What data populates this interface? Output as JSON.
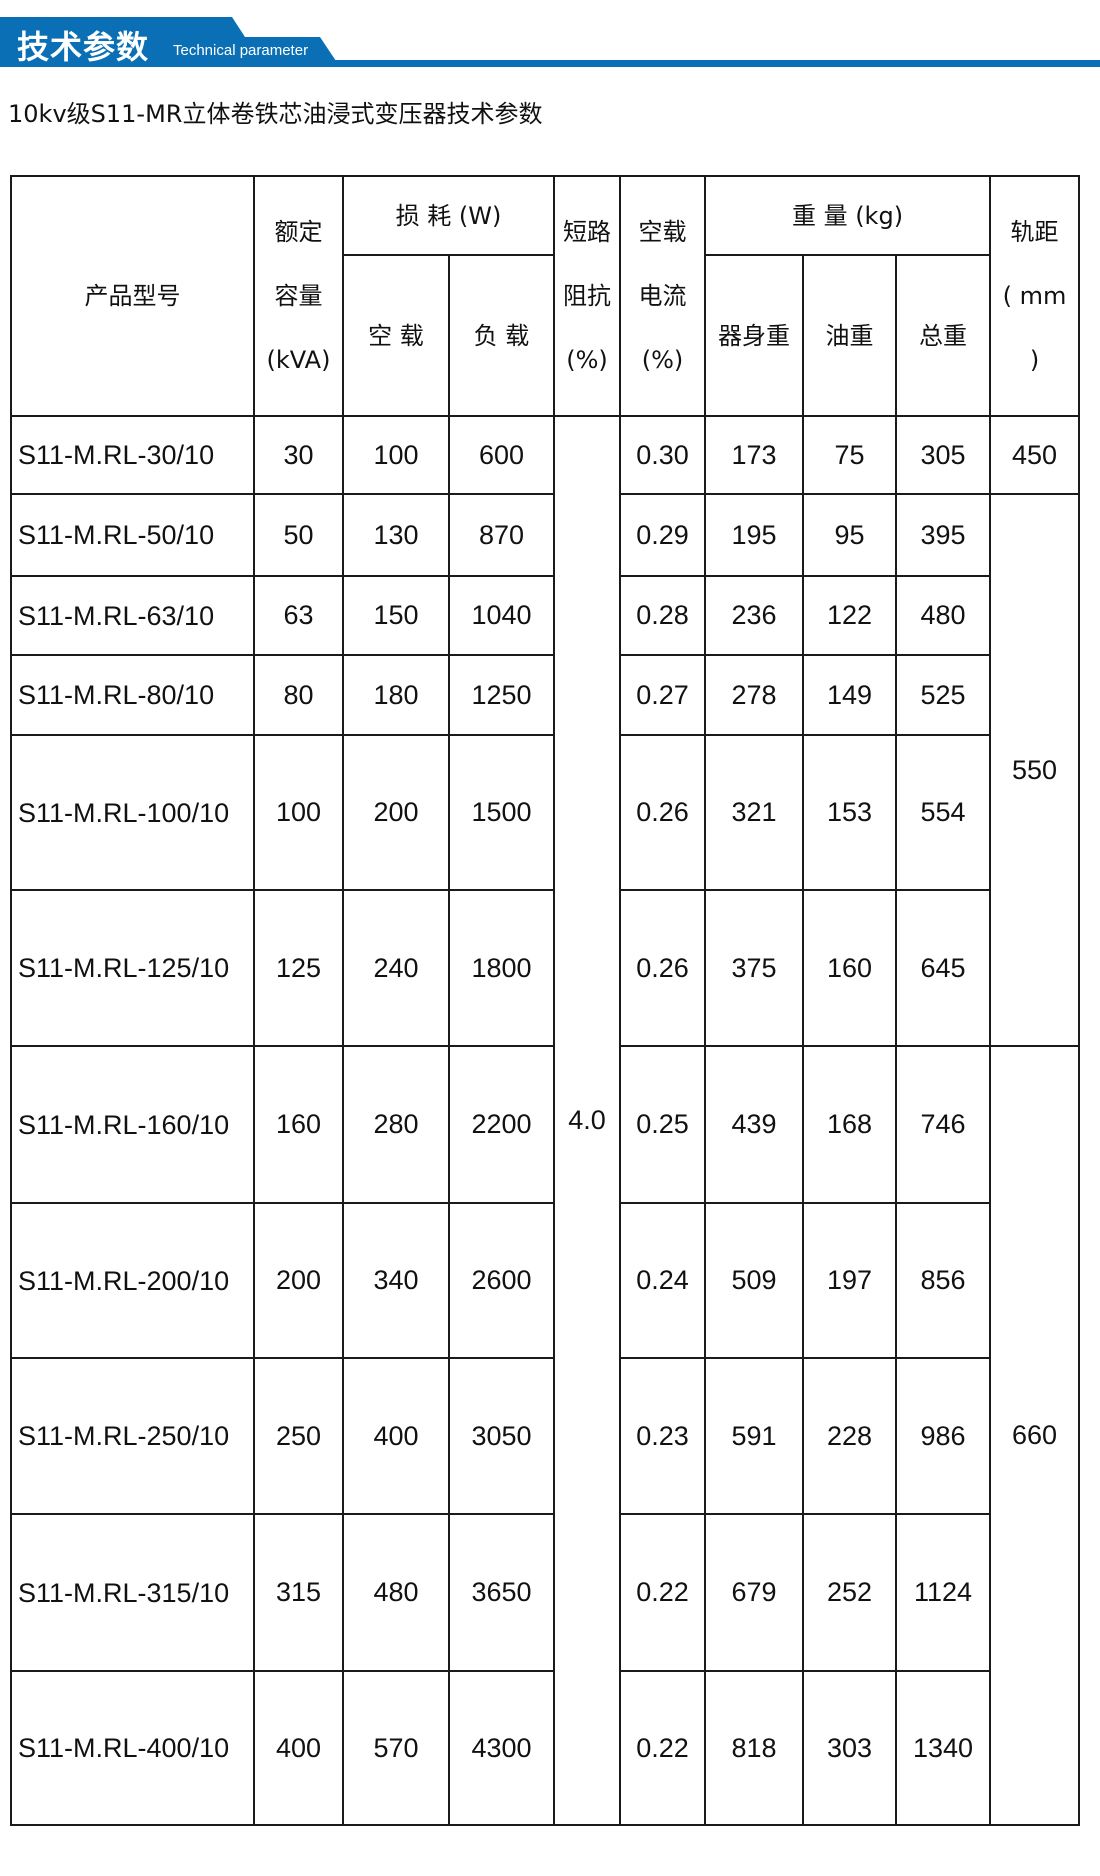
{
  "header": {
    "title": "技术参数",
    "subtitle_en": "Technical parameter",
    "accent_color": "#0a6fb5"
  },
  "doc_title": "10kv级S11-MR立体卷铁芯油浸式变压器技术参数",
  "table": {
    "headers": {
      "model": "产品型号",
      "capacity": [
        "额定",
        "容量",
        "(kVA)"
      ],
      "loss": "损 耗 (W)",
      "loss_noload": "空 载",
      "loss_load": "负 载",
      "impedance": [
        "短路",
        "阻抗",
        "(%)"
      ],
      "current": [
        "空载",
        "电流",
        "(%)"
      ],
      "weight": "重 量 (kg)",
      "weight_body": "器身重",
      "weight_oil": "油重",
      "weight_total": "总重",
      "rail": [
        "轨距",
        "( mm",
        ")"
      ]
    },
    "impedance_value": "4.0",
    "rail_values": [
      "450",
      "550",
      "660"
    ],
    "rows": [
      {
        "model": "S11-M.RL-30/10",
        "cap": "30",
        "nl": "100",
        "ll": "600",
        "cur": "0.30",
        "body": "173",
        "oil": "75",
        "total": "305"
      },
      {
        "model": "S11-M.RL-50/10",
        "cap": "50",
        "nl": "130",
        "ll": "870",
        "cur": "0.29",
        "body": "195",
        "oil": "95",
        "total": "395"
      },
      {
        "model": "S11-M.RL-63/10",
        "cap": "63",
        "nl": "150",
        "ll": "1040",
        "cur": "0.28",
        "body": "236",
        "oil": "122",
        "total": "480"
      },
      {
        "model": "S11-M.RL-80/10",
        "cap": "80",
        "nl": "180",
        "ll": "1250",
        "cur": "0.27",
        "body": "278",
        "oil": "149",
        "total": "525"
      },
      {
        "model": "S11-M.RL-100/10",
        "cap": "100",
        "nl": "200",
        "ll": "1500",
        "cur": "0.26",
        "body": "321",
        "oil": "153",
        "total": "554"
      },
      {
        "model": "S11-M.RL-125/10",
        "cap": "125",
        "nl": "240",
        "ll": "1800",
        "cur": "0.26",
        "body": "375",
        "oil": "160",
        "total": "645"
      },
      {
        "model": "S11-M.RL-160/10",
        "cap": "160",
        "nl": "280",
        "ll": "2200",
        "cur": "0.25",
        "body": "439",
        "oil": "168",
        "total": "746"
      },
      {
        "model": "S11-M.RL-200/10",
        "cap": "200",
        "nl": "340",
        "ll": "2600",
        "cur": "0.24",
        "body": "509",
        "oil": "197",
        "total": "856"
      },
      {
        "model": "S11-M.RL-250/10",
        "cap": "250",
        "nl": "400",
        "ll": "3050",
        "cur": "0.23",
        "body": "591",
        "oil": "228",
        "total": "986"
      },
      {
        "model": "S11-M.RL-315/10",
        "cap": "315",
        "nl": "480",
        "ll": "3650",
        "cur": "0.22",
        "body": "679",
        "oil": "252",
        "total": "1124"
      },
      {
        "model": "S11-M.RL-400/10",
        "cap": "400",
        "nl": "570",
        "ll": "4300",
        "cur": "0.22",
        "body": "818",
        "oil": "303",
        "total": "1340"
      }
    ]
  }
}
